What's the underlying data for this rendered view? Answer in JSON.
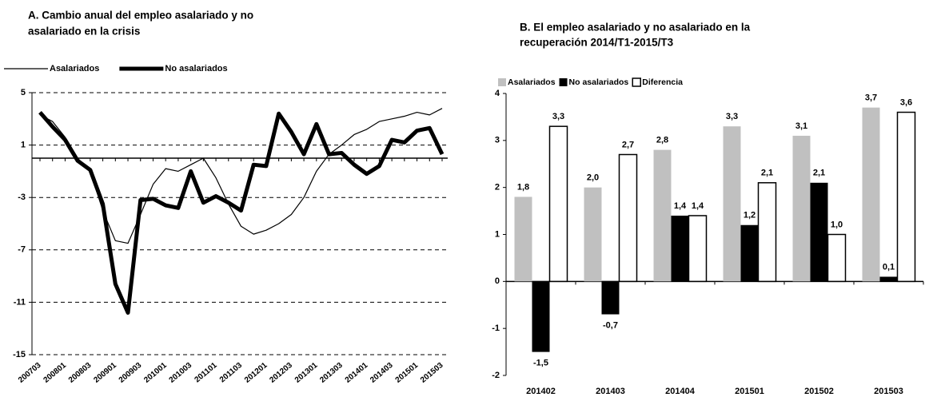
{
  "chart_data": [
    {
      "type": "line",
      "title": [
        "A. Cambio anual del empleo asalariado y no",
        "asalariado en la crisis"
      ],
      "categories": [
        "200703",
        null,
        "200801",
        null,
        "200803",
        null,
        "200901",
        null,
        "200903",
        null,
        "201001",
        null,
        "201003",
        null,
        "201101",
        null,
        "201103",
        null,
        "201201",
        null,
        "201203",
        null,
        "201301",
        null,
        "201303",
        null,
        "201401",
        null,
        "201403",
        null,
        "201501",
        null,
        "201503"
      ],
      "series": [
        {
          "name": "Asalariados",
          "color": "#000000",
          "width": 1.2,
          "values": [
            3.3,
            2.8,
            1.6,
            0,
            -1.0,
            -4.0,
            -6.3,
            -6.5,
            -4.3,
            -2.0,
            -0.8,
            -1.0,
            -0.5,
            0,
            -1.5,
            -3.5,
            -5.2,
            -5.8,
            -5.5,
            -5.0,
            -4.3,
            -3.0,
            -1.0,
            0.3,
            1.0,
            1.8,
            2.2,
            2.8,
            3.0,
            3.2,
            3.5,
            3.3,
            3.8
          ]
        },
        {
          "name": "No asalariados",
          "color": "#000000",
          "width": 5,
          "values": [
            3.5,
            2.4,
            1.4,
            -0.2,
            -0.9,
            -3.5,
            -9.6,
            -11.8,
            -3.2,
            -3.1,
            -3.6,
            -3.8,
            -1.0,
            -3.4,
            -2.9,
            -3.4,
            -4.0,
            -0.5,
            -0.6,
            3.4,
            2.0,
            0.3,
            2.6,
            0.3,
            0.4,
            -0.5,
            -1.2,
            -0.6,
            1.4,
            1.2,
            2.1,
            2.3,
            0.3
          ]
        }
      ],
      "ylim": [
        -15,
        5
      ],
      "yticks": [
        5,
        1,
        -3,
        -7,
        -11,
        -15
      ],
      "grid": true
    },
    {
      "type": "bar",
      "title": [
        "B. El empleo asalariado y no asalariado en la",
        "recuperación 2014/T1-2015/T3"
      ],
      "categories": [
        "201402",
        "201403",
        "201404",
        "201501",
        "201502",
        "201503"
      ],
      "series": [
        {
          "name": "Asalariados",
          "color": "#c0c0c0",
          "values": [
            1.8,
            2.0,
            2.8,
            3.3,
            3.1,
            3.7
          ],
          "value_labels": [
            "1,8",
            "2,0",
            "2,8",
            "3,3",
            "3,1",
            "3,7"
          ]
        },
        {
          "name": "No asalariados",
          "color": "#000000",
          "values": [
            -1.5,
            -0.7,
            1.4,
            1.2,
            2.1,
            0.1
          ],
          "value_labels": [
            "-1,5",
            "-0,7",
            "1,4",
            "1,2",
            "2,1",
            "0,1"
          ]
        },
        {
          "name": "Diferencia",
          "color": "#ffffff",
          "values": [
            3.3,
            2.7,
            1.4,
            2.1,
            1.0,
            3.6
          ],
          "value_labels": [
            "3,3",
            "2,7",
            "1,4",
            "2,1",
            "1,0",
            "3,6"
          ]
        }
      ],
      "ylim": [
        -2,
        4
      ],
      "yticks": [
        4,
        3,
        2,
        1,
        0,
        -1,
        -2
      ],
      "grid": false
    }
  ]
}
